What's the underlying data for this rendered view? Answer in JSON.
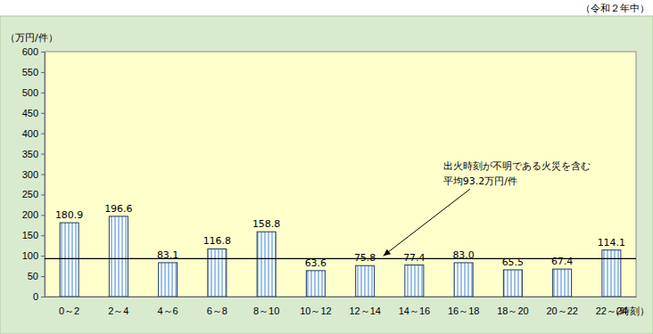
{
  "chart_data": {
    "type": "bar",
    "subtitle": "（令和２年中）",
    "ylabel": "（万円/件）",
    "xlabel": "（時刻）",
    "categories": [
      "0～2",
      "2～4",
      "4～6",
      "6～8",
      "8～10",
      "10～12",
      "12～14",
      "14～16",
      "16～18",
      "18～20",
      "20～22",
      "22～24"
    ],
    "values": [
      180.9,
      196.6,
      83.1,
      116.8,
      158.8,
      63.6,
      75.8,
      77.4,
      83.0,
      65.5,
      67.4,
      114.1
    ],
    "color": "#9dc3e6",
    "ylim": [
      0,
      600
    ],
    "yticks": [
      0,
      50,
      100,
      150,
      200,
      250,
      300,
      350,
      400,
      450,
      500,
      550,
      600
    ],
    "data_labels": true,
    "grid": false,
    "average": 93.2,
    "annotations": [
      "出火時刻が不明である火災を含む",
      "平均93.2万円/件"
    ]
  }
}
